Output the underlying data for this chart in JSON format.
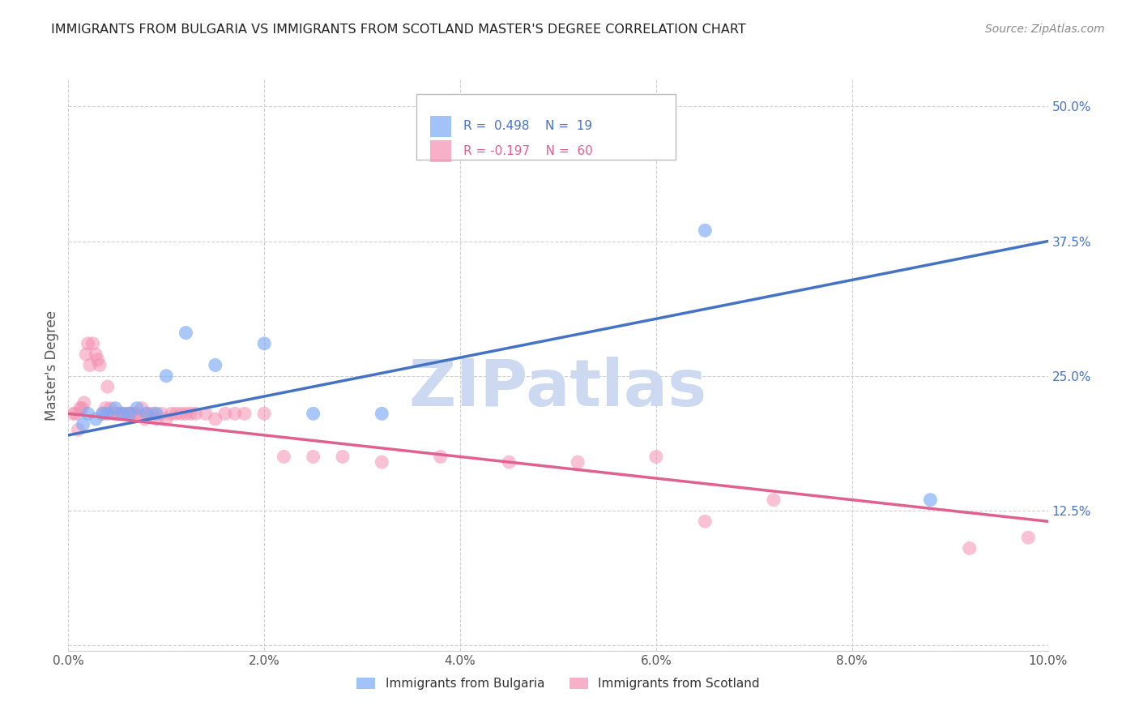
{
  "title": "IMMIGRANTS FROM BULGARIA VS IMMIGRANTS FROM SCOTLAND MASTER'S DEGREE CORRELATION CHART",
  "source": "Source: ZipAtlas.com",
  "ylabel": "Master's Degree",
  "xlim": [
    0.0,
    10.0
  ],
  "ylim": [
    -0.005,
    0.525
  ],
  "y_ticks": [
    0.0,
    0.125,
    0.25,
    0.375,
    0.5
  ],
  "x_ticks": [
    0.0,
    2.0,
    4.0,
    6.0,
    8.0,
    10.0
  ],
  "series1_name": "Immigrants from Bulgaria",
  "series2_name": "Immigrants from Scotland",
  "series1_color": "#7baaf7",
  "series2_color": "#f48fb1",
  "series1_line_color": "#4472c4",
  "series2_line_color": "#e06090",
  "series1_R": 0.498,
  "series1_N": 19,
  "series2_R": -0.197,
  "series2_N": 60,
  "bulgaria_x": [
    0.15,
    0.2,
    0.28,
    0.35,
    0.4,
    0.48,
    0.55,
    0.62,
    0.7,
    0.8,
    0.9,
    1.0,
    1.2,
    1.5,
    2.0,
    2.5,
    3.2,
    6.5,
    8.8
  ],
  "bulgaria_y": [
    0.205,
    0.215,
    0.21,
    0.215,
    0.215,
    0.22,
    0.215,
    0.215,
    0.22,
    0.215,
    0.215,
    0.25,
    0.29,
    0.26,
    0.28,
    0.215,
    0.215,
    0.385,
    0.135
  ],
  "scotland_x": [
    0.05,
    0.08,
    0.1,
    0.12,
    0.14,
    0.16,
    0.18,
    0.2,
    0.22,
    0.25,
    0.28,
    0.3,
    0.32,
    0.35,
    0.38,
    0.4,
    0.43,
    0.45,
    0.48,
    0.5,
    0.52,
    0.55,
    0.58,
    0.6,
    0.63,
    0.65,
    0.68,
    0.7,
    0.75,
    0.78,
    0.8,
    0.85,
    0.88,
    0.9,
    0.95,
    1.0,
    1.05,
    1.1,
    1.15,
    1.2,
    1.25,
    1.3,
    1.4,
    1.5,
    1.6,
    1.7,
    1.8,
    2.0,
    2.2,
    2.5,
    2.8,
    3.2,
    3.8,
    4.5,
    5.2,
    6.0,
    6.5,
    7.2,
    9.2,
    9.8
  ],
  "scotland_y": [
    0.215,
    0.215,
    0.2,
    0.22,
    0.22,
    0.225,
    0.27,
    0.28,
    0.26,
    0.28,
    0.27,
    0.265,
    0.26,
    0.215,
    0.22,
    0.24,
    0.22,
    0.215,
    0.215,
    0.215,
    0.215,
    0.215,
    0.215,
    0.215,
    0.215,
    0.215,
    0.215,
    0.215,
    0.22,
    0.21,
    0.215,
    0.215,
    0.215,
    0.21,
    0.215,
    0.21,
    0.215,
    0.215,
    0.215,
    0.215,
    0.215,
    0.215,
    0.215,
    0.21,
    0.215,
    0.215,
    0.215,
    0.215,
    0.175,
    0.175,
    0.175,
    0.17,
    0.175,
    0.17,
    0.17,
    0.175,
    0.115,
    0.135,
    0.09,
    0.1
  ],
  "watermark": "ZIPatlas",
  "watermark_color": "#ccd9f0",
  "background_color": "#ffffff",
  "grid_color": "#d0d0d0",
  "title_fontsize": 11.5,
  "ylabel_fontsize": 12,
  "tick_fontsize": 11,
  "source_fontsize": 10,
  "legend_fontsize": 11,
  "tick_color_y": "#4472c4",
  "tick_color_x": "#555555",
  "blue_line_y0": 0.195,
  "blue_line_y1": 0.375,
  "pink_line_y0": 0.215,
  "pink_line_y1": 0.115
}
